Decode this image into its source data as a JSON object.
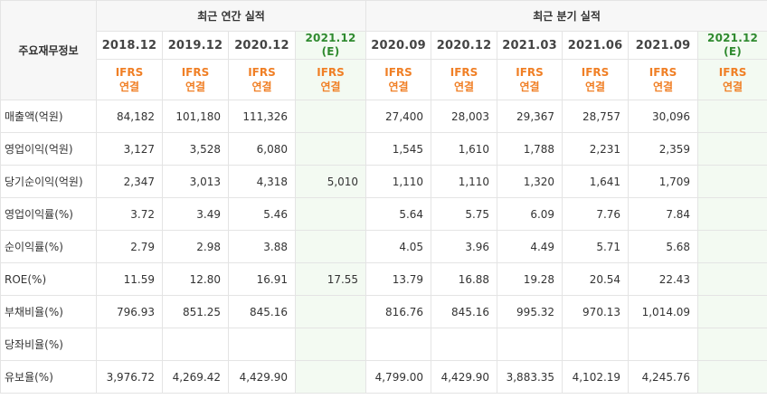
{
  "table": {
    "corner_label": "주요재무정보",
    "annual_group": "최근 연간 실적",
    "quarter_group": "최근 분기 실적",
    "annual_periods": [
      {
        "line1": "2018.12",
        "line2": ""
      },
      {
        "line1": "2019.12",
        "line2": ""
      },
      {
        "line1": "2020.12",
        "line2": ""
      },
      {
        "line1": "2021.12",
        "line2": "(E)"
      }
    ],
    "quarter_periods": [
      {
        "line1": "2020.09",
        "line2": ""
      },
      {
        "line1": "2020.12",
        "line2": ""
      },
      {
        "line1": "2021.03",
        "line2": ""
      },
      {
        "line1": "2021.06",
        "line2": ""
      },
      {
        "line1": "2021.09",
        "line2": ""
      },
      {
        "line1": "2021.12",
        "line2": "(E)"
      }
    ],
    "ifrs_line1": "IFRS",
    "ifrs_line2": "연결",
    "rows": [
      {
        "label": "매출액(억원)",
        "values": [
          "84,182",
          "101,180",
          "111,326",
          "",
          "27,400",
          "28,003",
          "29,367",
          "28,757",
          "30,096",
          ""
        ]
      },
      {
        "label": "영업이익(억원)",
        "values": [
          "3,127",
          "3,528",
          "6,080",
          "",
          "1,545",
          "1,610",
          "1,788",
          "2,231",
          "2,359",
          ""
        ]
      },
      {
        "label": "당기순이익(억원)",
        "values": [
          "2,347",
          "3,013",
          "4,318",
          "5,010",
          "1,110",
          "1,110",
          "1,320",
          "1,641",
          "1,709",
          ""
        ]
      },
      {
        "label": "영업이익률(%)",
        "values": [
          "3.72",
          "3.49",
          "5.46",
          "",
          "5.64",
          "5.75",
          "6.09",
          "7.76",
          "7.84",
          ""
        ]
      },
      {
        "label": "순이익률(%)",
        "values": [
          "2.79",
          "2.98",
          "3.88",
          "",
          "4.05",
          "3.96",
          "4.49",
          "5.71",
          "5.68",
          ""
        ]
      },
      {
        "label": "ROE(%)",
        "values": [
          "11.59",
          "12.80",
          "16.91",
          "17.55",
          "13.79",
          "16.88",
          "19.28",
          "20.54",
          "22.43",
          ""
        ]
      },
      {
        "label": "부채비율(%)",
        "values": [
          "796.93",
          "851.25",
          "845.16",
          "",
          "816.76",
          "845.16",
          "995.32",
          "970.13",
          "1,014.09",
          ""
        ]
      },
      {
        "label": "당좌비율(%)",
        "values": [
          "",
          "",
          "",
          "",
          "",
          "",
          "",
          "",
          "",
          ""
        ]
      },
      {
        "label": "유보율(%)",
        "values": [
          "3,976.72",
          "4,269.42",
          "4,429.90",
          "",
          "4,799.00",
          "4,429.90",
          "3,883.35",
          "4,102.19",
          "4,245.76",
          ""
        ]
      }
    ]
  }
}
